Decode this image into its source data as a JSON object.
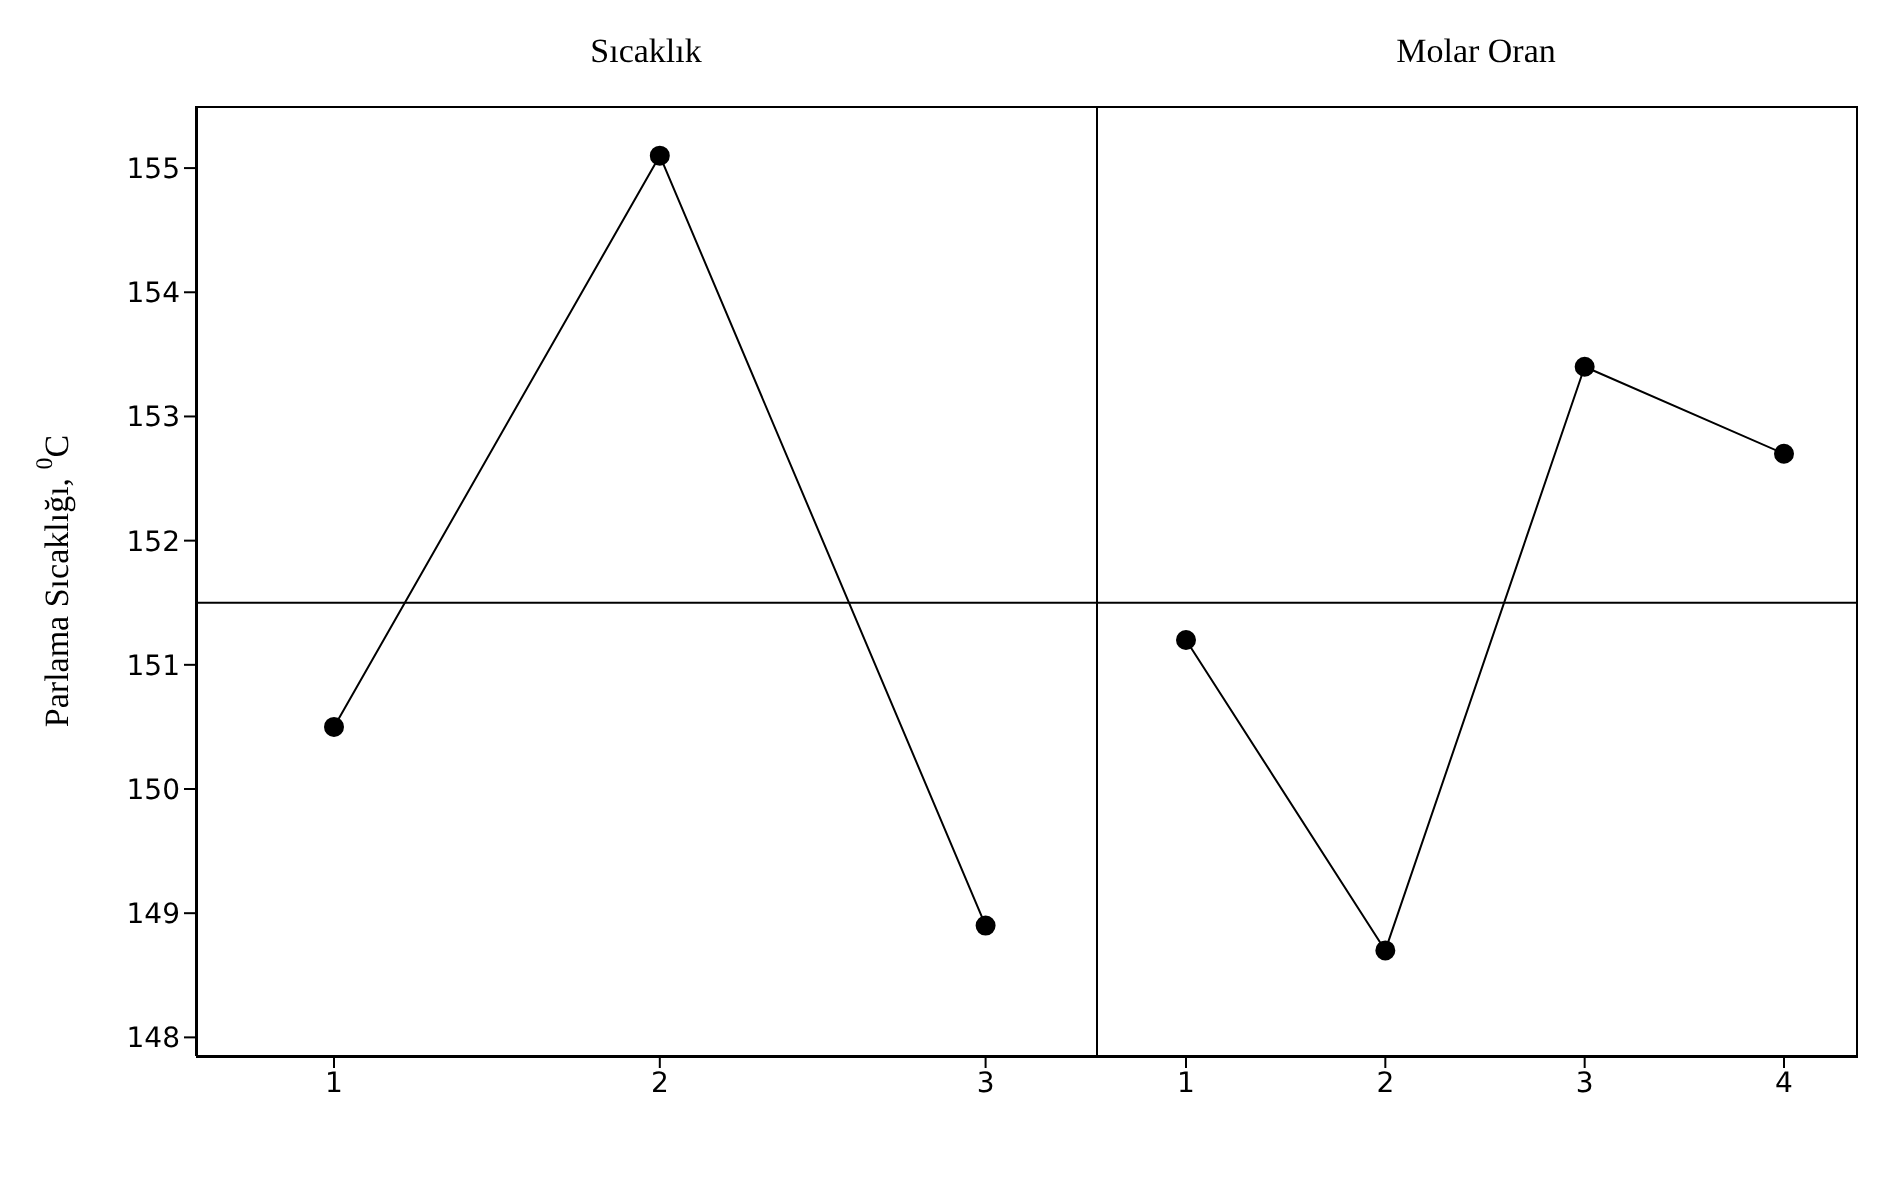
{
  "chart_data": [
    {
      "type": "line",
      "title": "Sıcaklık",
      "ylabel": "Parlama Sıcaklığı, $^{0}$C",
      "categories": [
        "1",
        "2",
        "3"
      ],
      "values": [
        150.5,
        155.1,
        148.9
      ],
      "color": "#000000",
      "marker": "circle",
      "line_style": "solid",
      "ylim": [
        147.85,
        155.5
      ],
      "yticks": [
        148,
        149,
        150,
        151,
        152,
        153,
        154,
        155
      ],
      "ref_lines": [
        {
          "axis": "y",
          "value": 151.5
        }
      ],
      "grid": false,
      "legend": false
    },
    {
      "type": "line",
      "title": "Molar Oran",
      "categories": [
        "1",
        "2",
        "3",
        "4"
      ],
      "values": [
        151.2,
        148.7,
        153.4,
        152.7
      ],
      "color": "#000000",
      "marker": "circle",
      "line_style": "solid",
      "ylim": [
        147.85,
        155.5
      ],
      "yticks": [
        148,
        149,
        150,
        151,
        152,
        153,
        154,
        155
      ],
      "tick_labels": "x",
      "ref_lines": [
        {
          "axis": "y",
          "value": 151.5
        }
      ],
      "grid": false,
      "legend": false
    }
  ]
}
